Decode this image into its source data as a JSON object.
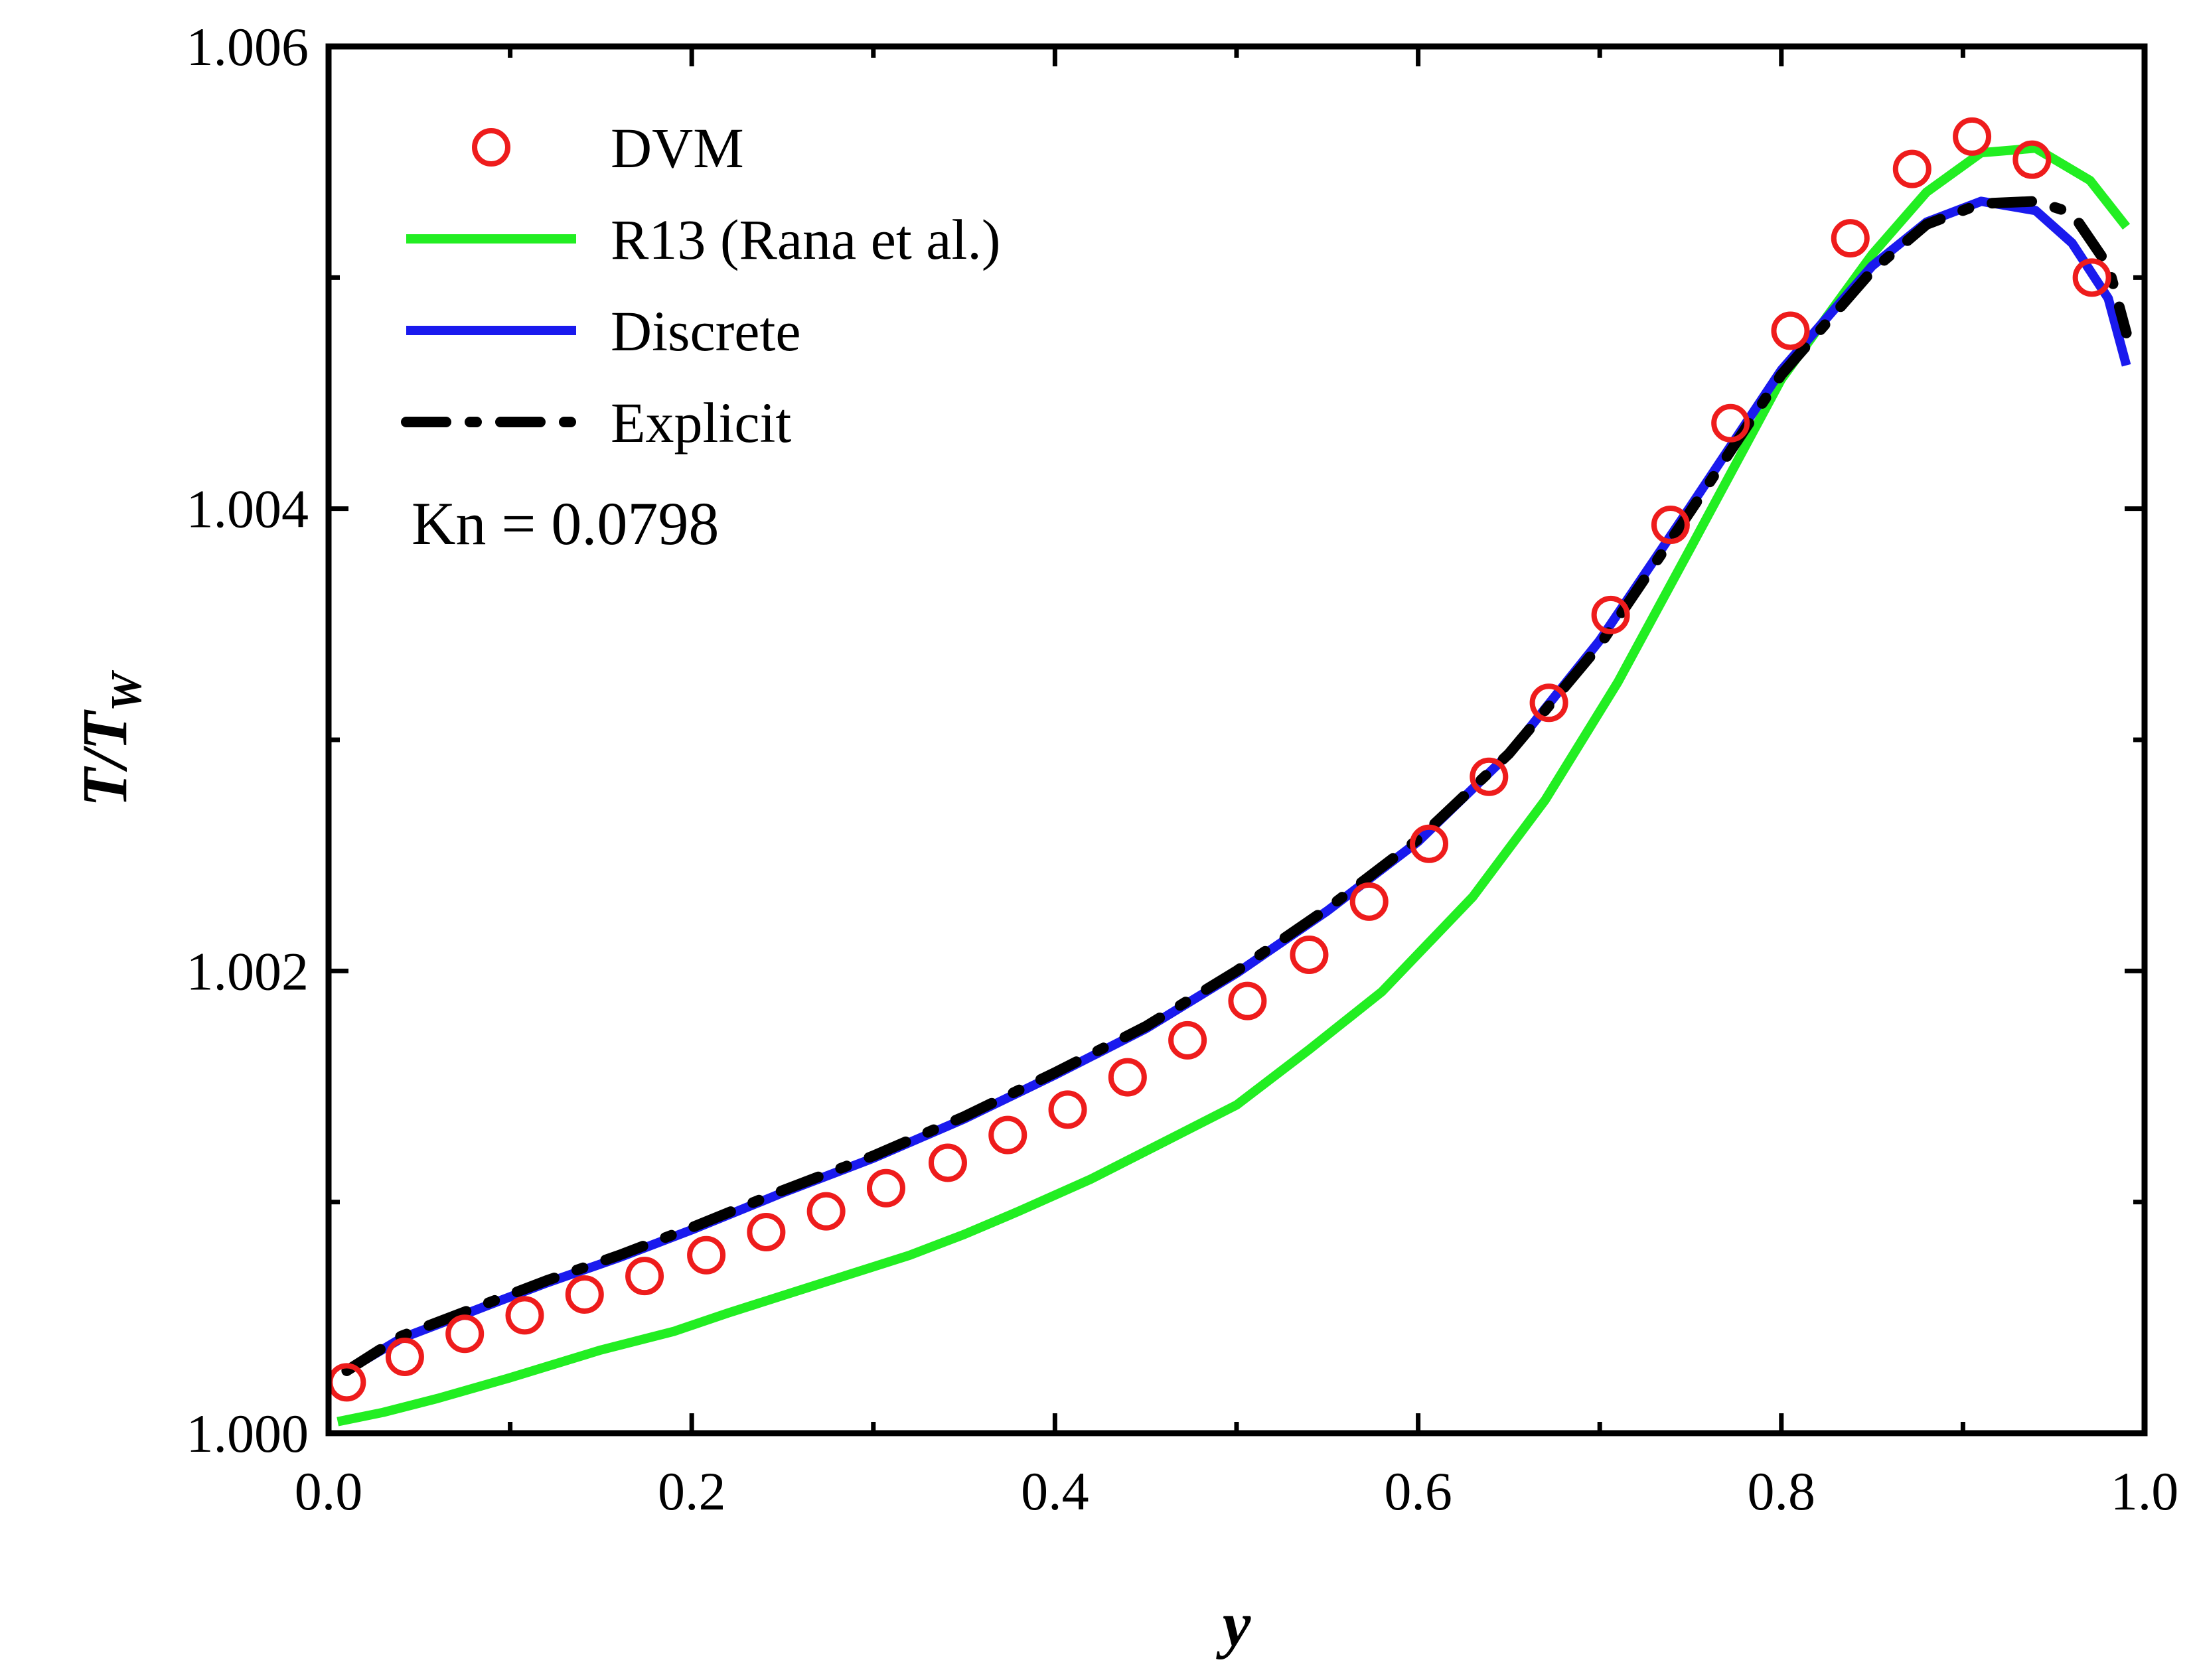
{
  "chart_data": {
    "type": "line",
    "title": "",
    "xlabel": "y",
    "ylabel_main": "T/T",
    "ylabel_sub": "W",
    "xlim": [
      0.0,
      1.0
    ],
    "ylim": [
      1.0,
      1.006
    ],
    "x_ticks": [
      "0.0",
      "0.2",
      "0.4",
      "0.6",
      "0.8",
      "1.0"
    ],
    "y_ticks": [
      "1.000",
      "1.002",
      "1.004",
      "1.006"
    ],
    "annotation": "Kn = 0.0798",
    "legend_position": "top-left",
    "series": [
      {
        "name": "DVM",
        "style": "markers-open-circle",
        "color": "#ee1c1c",
        "x": [
          0.01,
          0.042,
          0.075,
          0.108,
          0.141,
          0.174,
          0.208,
          0.241,
          0.274,
          0.307,
          0.341,
          0.374,
          0.407,
          0.44,
          0.473,
          0.506,
          0.54,
          0.573,
          0.606,
          0.639,
          0.672,
          0.706,
          0.739,
          0.772,
          0.805,
          0.838,
          0.872,
          0.905,
          0.938,
          0.971
        ],
        "y": [
          1.00022,
          1.00033,
          1.00043,
          1.00051,
          1.0006,
          1.00068,
          1.00077,
          1.00087,
          1.00096,
          1.00106,
          1.00117,
          1.00129,
          1.0014,
          1.00154,
          1.0017,
          1.00187,
          1.00207,
          1.0023,
          1.00255,
          1.00284,
          1.00316,
          1.00354,
          1.00393,
          1.00437,
          1.00477,
          1.00517,
          1.00547,
          1.00561,
          1.00551,
          1.005
        ]
      },
      {
        "name": "R13 (Rana et al.)",
        "style": "line",
        "color": "#22ee22",
        "x": [
          0.005,
          0.03,
          0.06,
          0.1,
          0.15,
          0.19,
          0.22,
          0.26,
          0.32,
          0.35,
          0.38,
          0.42,
          0.46,
          0.5,
          0.54,
          0.58,
          0.63,
          0.67,
          0.71,
          0.75,
          0.8,
          0.85,
          0.88,
          0.91,
          0.94,
          0.97,
          0.99
        ],
        "y": [
          1.00005,
          1.00009,
          1.00015,
          1.00024,
          1.00036,
          1.00044,
          1.00052,
          1.00062,
          1.00077,
          1.00086,
          1.00096,
          1.0011,
          1.00126,
          1.00142,
          1.00166,
          1.00191,
          1.00232,
          1.00274,
          1.00325,
          1.00383,
          1.00456,
          1.0051,
          1.00537,
          1.00554,
          1.00556,
          1.00542,
          1.00522
        ]
      },
      {
        "name": "Discrete",
        "style": "line",
        "color": "#1a1aee",
        "x": [
          0.01,
          0.04,
          0.08,
          0.12,
          0.16,
          0.2,
          0.25,
          0.3,
          0.35,
          0.4,
          0.45,
          0.5,
          0.55,
          0.6,
          0.65,
          0.7,
          0.75,
          0.8,
          0.85,
          0.88,
          0.91,
          0.94,
          0.96,
          0.98,
          0.99
        ],
        "y": [
          1.00027,
          1.00041,
          1.00053,
          1.00065,
          1.00076,
          1.00088,
          1.00104,
          1.00119,
          1.00136,
          1.00155,
          1.00175,
          1.00199,
          1.00226,
          1.00256,
          1.00294,
          1.00343,
          1.00401,
          1.0046,
          1.00505,
          1.00524,
          1.00533,
          1.00529,
          1.00515,
          1.00491,
          1.00462
        ]
      },
      {
        "name": "Explicit",
        "style": "dash-dot",
        "color": "#000000",
        "x": [
          0.01,
          0.04,
          0.08,
          0.12,
          0.16,
          0.2,
          0.25,
          0.3,
          0.35,
          0.4,
          0.45,
          0.5,
          0.55,
          0.6,
          0.65,
          0.7,
          0.75,
          0.8,
          0.85,
          0.88,
          0.91,
          0.94,
          0.96,
          0.98,
          0.99
        ],
        "y": [
          1.00027,
          1.00042,
          1.00054,
          1.00066,
          1.00077,
          1.00089,
          1.00105,
          1.0012,
          1.00137,
          1.00156,
          1.00176,
          1.002,
          1.00227,
          1.00257,
          1.00294,
          1.00341,
          1.00399,
          1.00458,
          1.00503,
          1.00523,
          1.00532,
          1.00533,
          1.00528,
          1.00505,
          1.00476
        ]
      }
    ]
  }
}
